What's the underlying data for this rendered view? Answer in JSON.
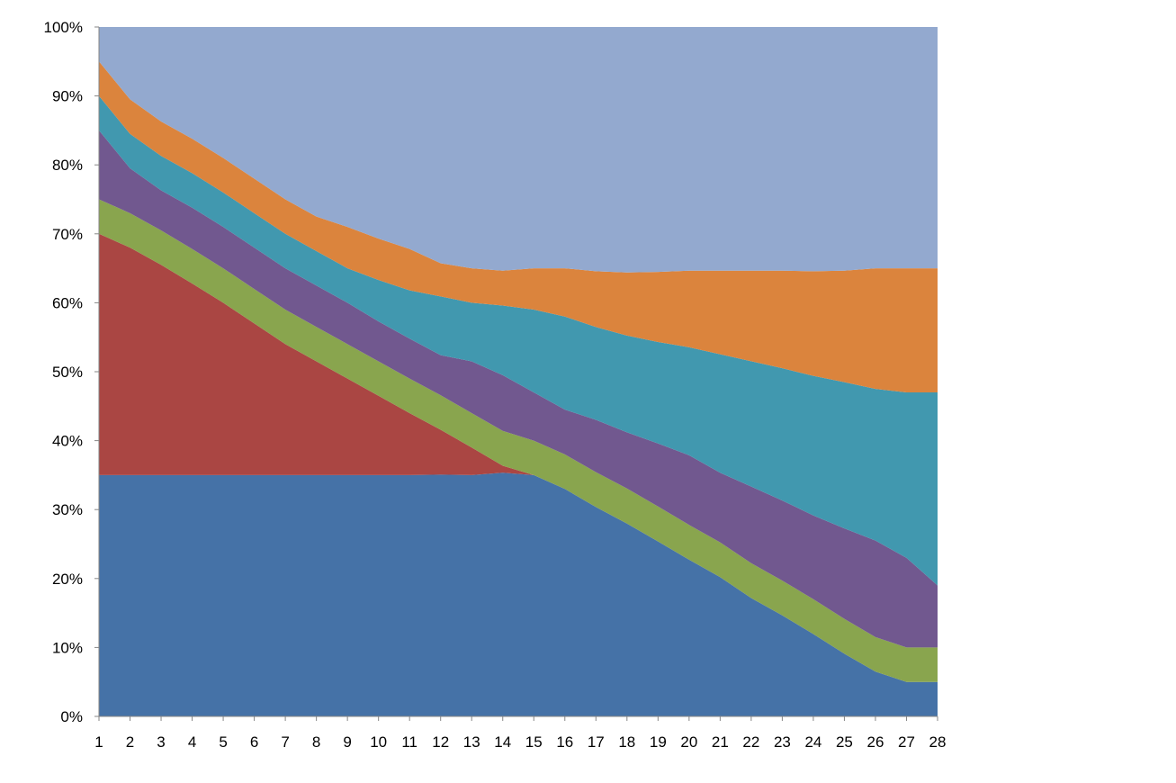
{
  "chart_data": {
    "type": "area",
    "stacked": true,
    "normalized": true,
    "title": "",
    "xlabel": "",
    "ylabel": "",
    "x": [
      1,
      2,
      3,
      4,
      5,
      6,
      7,
      8,
      9,
      10,
      11,
      12,
      13,
      14,
      15,
      16,
      17,
      18,
      19,
      20,
      21,
      22,
      23,
      24,
      25,
      26,
      27,
      28
    ],
    "x_tick_labels": [
      "1",
      "2",
      "3",
      "4",
      "5",
      "6",
      "7",
      "8",
      "9",
      "10",
      "11",
      "12",
      "13",
      "14",
      "15",
      "16",
      "17",
      "18",
      "19",
      "20",
      "21",
      "22",
      "23",
      "24",
      "25",
      "26",
      "27",
      "28"
    ],
    "ylim": [
      0,
      100
    ],
    "y_ticks": [
      0,
      10,
      20,
      30,
      40,
      50,
      60,
      70,
      80,
      90,
      100
    ],
    "y_tick_labels": [
      "0%",
      "10%",
      "20%",
      "30%",
      "40%",
      "50%",
      "60%",
      "70%",
      "80%",
      "90%",
      "100%"
    ],
    "grid": false,
    "legend": "none",
    "series": [
      {
        "color": "#4572A7",
        "values": [
          35,
          35,
          35,
          35,
          35,
          35,
          35,
          35,
          35,
          35,
          35,
          35,
          35,
          35,
          35,
          33,
          30,
          27.5,
          25,
          22.5,
          20,
          17,
          14.5,
          11.8,
          9,
          6.5,
          5,
          5
        ]
      },
      {
        "color": "#AA4643",
        "values": [
          35,
          33,
          30.5,
          27.8,
          25,
          22,
          19,
          16.5,
          14,
          11.5,
          9,
          6.5,
          4,
          1,
          0,
          0,
          0,
          0,
          0,
          0,
          0,
          0,
          0,
          0,
          0,
          0,
          0,
          0
        ]
      },
      {
        "color": "#89A54E",
        "values": [
          5,
          5,
          5,
          5,
          5,
          5,
          5,
          5,
          5,
          5,
          5,
          5,
          5,
          5,
          5,
          5,
          5,
          5,
          5,
          5,
          5,
          5,
          5,
          5,
          5,
          5,
          5,
          5
        ]
      },
      {
        "color": "#71588F",
        "values": [
          10,
          6.5,
          5.8,
          6,
          6,
          6,
          6,
          6,
          6,
          5.8,
          5.8,
          5.8,
          7.5,
          8,
          7,
          6.5,
          7.5,
          8,
          9,
          10,
          10,
          11,
          11.5,
          12,
          13,
          14,
          13,
          9
        ]
      },
      {
        "color": "#4198AF",
        "values": [
          5,
          5,
          5,
          5,
          5,
          5,
          5,
          5,
          5,
          6,
          7,
          8.5,
          8.5,
          10,
          12,
          13.5,
          13.3,
          13.8,
          14.5,
          15.5,
          17,
          18,
          19,
          20,
          21,
          22,
          24,
          28
        ]
      },
      {
        "color": "#DB843D",
        "values": [
          5,
          5,
          5,
          5,
          5,
          5,
          5,
          5,
          6,
          6,
          6,
          4.8,
          5,
          5,
          6,
          7,
          8,
          9,
          10,
          11,
          12,
          13,
          14,
          15,
          16,
          17.5,
          18,
          18
        ]
      },
      {
        "color": "#93A9CF",
        "values": [
          5,
          10.5,
          13.7,
          16.2,
          19,
          22,
          25,
          27.5,
          29,
          30.7,
          32.2,
          34.2,
          35,
          35,
          35,
          35,
          35,
          35,
          35,
          35,
          35,
          35,
          35,
          35,
          35,
          35,
          35,
          35
        ]
      }
    ]
  }
}
